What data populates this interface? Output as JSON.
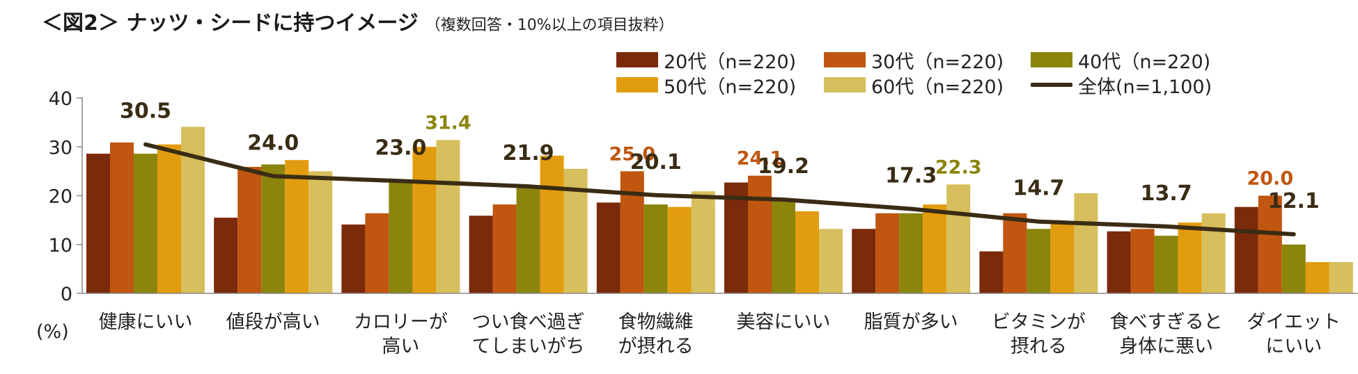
{
  "chart_data": {
    "type": "bar",
    "title": "＜図2＞ ナッツ・シードに持つイメージ",
    "subtitle": "（複数回答・10%以上の項目抜粋）",
    "ylabel": "(%)",
    "ylim": [
      0,
      40
    ],
    "yticks": [
      0,
      10,
      20,
      30,
      40
    ],
    "categories": [
      [
        "健康にいい"
      ],
      [
        "値段が高い"
      ],
      [
        "カロリーが",
        "高い"
      ],
      [
        "つい食べ過ぎ",
        "てしまいがち"
      ],
      [
        "食物繊維",
        "が摂れる"
      ],
      [
        "美容にいい"
      ],
      [
        "脂質が多い"
      ],
      [
        "ビタミンが",
        "摂れる"
      ],
      [
        "食べすぎると",
        "身体に悪い"
      ],
      [
        "ダイエット",
        "にいい"
      ]
    ],
    "series": [
      {
        "name": "20代（n=220)",
        "color": "#7b2a0b",
        "values": [
          28.6,
          15.5,
          14.1,
          15.9,
          18.6,
          22.7,
          13.2,
          8.6,
          12.7,
          17.7
        ]
      },
      {
        "name": "30代（n=220)",
        "color": "#c0560f",
        "values": [
          30.9,
          25.9,
          16.4,
          18.2,
          25.0,
          24.1,
          16.4,
          16.4,
          13.2,
          20.0
        ]
      },
      {
        "name": "40代（n=220)",
        "color": "#8b850c",
        "values": [
          28.6,
          26.4,
          22.7,
          21.8,
          18.2,
          19.1,
          16.4,
          13.2,
          11.8,
          10.0
        ]
      },
      {
        "name": "50代（n=220)",
        "color": "#e29c0f",
        "values": [
          30.5,
          27.3,
          30.0,
          28.2,
          17.7,
          16.8,
          18.2,
          14.5,
          14.5,
          6.4
        ]
      },
      {
        "name": "60代（n=220)",
        "color": "#d6bf5c",
        "values": [
          34.1,
          25.0,
          31.4,
          25.5,
          20.9,
          13.2,
          22.3,
          20.5,
          16.4,
          6.4
        ]
      }
    ],
    "total": {
      "name": "全体(n=1,100)",
      "color": "#3a2c14",
      "values": [
        30.5,
        24.0,
        23.0,
        21.9,
        20.1,
        19.2,
        17.3,
        14.7,
        13.7,
        12.1
      ]
    },
    "annotations": [
      {
        "category": 0,
        "label": "30.5",
        "anchor": "total",
        "color": "#3a2c14"
      },
      {
        "category": 1,
        "label": "24.0",
        "anchor": "total",
        "color": "#3a2c14"
      },
      {
        "category": 2,
        "label": "23.0",
        "anchor": "total",
        "color": "#3a2c14"
      },
      {
        "category": 2,
        "label": "31.4",
        "anchor": "series",
        "series": 4,
        "color": "#8b850c"
      },
      {
        "category": 3,
        "label": "21.9",
        "anchor": "total",
        "color": "#3a2c14"
      },
      {
        "category": 4,
        "label": "25.0",
        "anchor": "series",
        "series": 1,
        "color": "#c0560f"
      },
      {
        "category": 4,
        "label": "20.1",
        "anchor": "total",
        "color": "#3a2c14"
      },
      {
        "category": 5,
        "label": "24.1",
        "anchor": "series",
        "series": 1,
        "color": "#c0560f"
      },
      {
        "category": 5,
        "label": "19.2",
        "anchor": "total",
        "color": "#3a2c14"
      },
      {
        "category": 6,
        "label": "17.3",
        "anchor": "total",
        "color": "#3a2c14"
      },
      {
        "category": 6,
        "label": "22.3",
        "anchor": "series",
        "series": 4,
        "color": "#8b850c"
      },
      {
        "category": 7,
        "label": "14.7",
        "anchor": "total",
        "color": "#3a2c14"
      },
      {
        "category": 8,
        "label": "13.7",
        "anchor": "total",
        "color": "#3a2c14"
      },
      {
        "category": 9,
        "label": "20.0",
        "anchor": "series",
        "series": 1,
        "color": "#c0560f"
      },
      {
        "category": 9,
        "label": "12.1",
        "anchor": "total",
        "color": "#3a2c14"
      }
    ],
    "legend_position": "top-right"
  }
}
